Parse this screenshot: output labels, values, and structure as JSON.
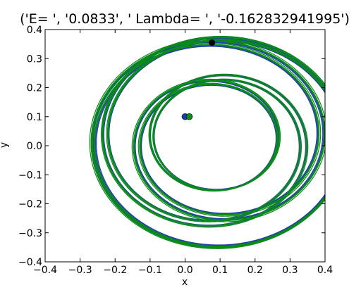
{
  "chart_data": {
    "type": "line",
    "title": "('E= ', '0.0833', ' Lambda= ', '-0.162832941995')",
    "xlabel": "x",
    "ylabel": "y",
    "xlim": [
      -0.4,
      0.4
    ],
    "ylim": [
      -0.4,
      0.4
    ],
    "xticks": [
      -0.4,
      -0.3,
      -0.2,
      -0.1,
      0.0,
      0.1,
      0.2,
      0.3,
      0.4
    ],
    "yticks": [
      -0.4,
      -0.3,
      -0.2,
      -0.1,
      0.0,
      0.1,
      0.2,
      0.3,
      0.4
    ],
    "xtick_labels": [
      "−0.4",
      "−0.3",
      "−0.2",
      "−0.1",
      "0.0",
      "0.1",
      "0.2",
      "0.3",
      "0.4"
    ],
    "ytick_labels": [
      "−0.4",
      "−0.3",
      "−0.2",
      "−0.1",
      "0.0",
      "0.1",
      "0.2",
      "0.3",
      "0.4"
    ],
    "grid": false,
    "series": [
      {
        "color": "#1f3fa8",
        "start_point": [
          0.0,
          0.1
        ],
        "end_point": [
          0.077,
          0.355
        ],
        "marker_color": "#000000"
      },
      {
        "color": "#0a8a1a",
        "start_point": [
          0.012,
          0.1
        ]
      }
    ]
  }
}
